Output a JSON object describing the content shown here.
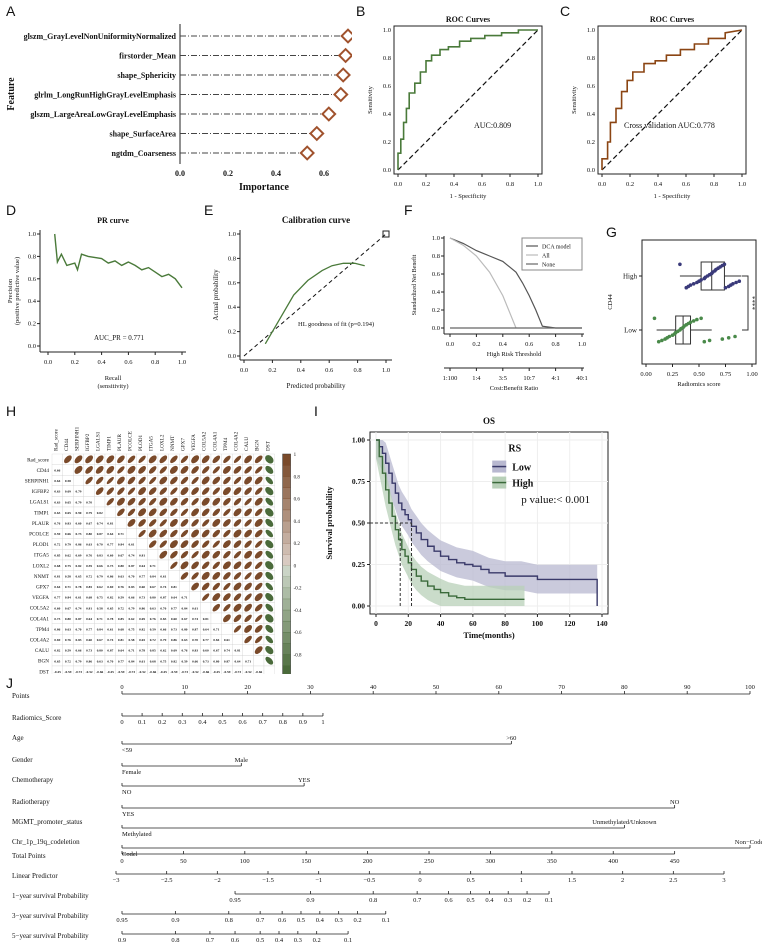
{
  "panel_labels": [
    "A",
    "B",
    "C",
    "D",
    "E",
    "F",
    "G",
    "H",
    "I",
    "J"
  ],
  "chart_data": [
    {
      "id": "A",
      "type": "scatter",
      "title": "",
      "xlabel": "Importance",
      "ylabel": "Feature",
      "xlim": [
        0,
        0.7
      ],
      "xticks": [
        "0.0",
        "0.2",
        "0.4",
        "0.6"
      ],
      "categories": [
        "glszm_GrayLevelNonUniformityNormalized",
        "firstorder_Mean",
        "shape_Sphericity",
        "glrlm_LongRunHighGrayLevelEmphasis",
        "glszm_LargeAreaLowGrayLevelEmphasis",
        "shape_SurfaceArea",
        "ngtdm_Coarseness"
      ],
      "values": [
        0.7,
        0.69,
        0.68,
        0.67,
        0.62,
        0.57,
        0.53
      ],
      "marker_color": "#a0522d"
    },
    {
      "id": "B",
      "type": "line",
      "title": "ROC Curves",
      "xlabel": "1 - Specificity",
      "ylabel": "Sensitivity",
      "xlim": [
        0,
        1
      ],
      "ylim": [
        0,
        1
      ],
      "ticks": [
        "0.0",
        "0.2",
        "0.4",
        "0.6",
        "0.8",
        "1.0"
      ],
      "annotation": "AUC:0.809",
      "color": "#4a7a3a",
      "x": [
        0,
        0,
        0.02,
        0.02,
        0.04,
        0.04,
        0.06,
        0.06,
        0.08,
        0.08,
        0.12,
        0.12,
        0.16,
        0.16,
        0.2,
        0.2,
        0.24,
        0.24,
        0.3,
        0.3,
        0.36,
        0.36,
        0.44,
        0.44,
        0.52,
        0.52,
        0.62,
        0.62,
        0.74,
        0.74,
        0.86,
        0.86,
        1
      ],
      "y": [
        0,
        0.12,
        0.12,
        0.22,
        0.22,
        0.34,
        0.34,
        0.44,
        0.44,
        0.55,
        0.55,
        0.62,
        0.62,
        0.7,
        0.7,
        0.78,
        0.78,
        0.82,
        0.82,
        0.86,
        0.86,
        0.88,
        0.88,
        0.92,
        0.92,
        0.94,
        0.94,
        0.96,
        0.96,
        0.98,
        0.98,
        1,
        1
      ]
    },
    {
      "id": "C",
      "type": "line",
      "title": "ROC Curves",
      "xlabel": "1 - Specificity",
      "ylabel": "Sensitivity",
      "xlim": [
        0,
        1
      ],
      "ylim": [
        0,
        1
      ],
      "ticks": [
        "0.0",
        "0.2",
        "0.4",
        "0.6",
        "0.8",
        "1.0"
      ],
      "annotation": "Cross validation AUC:0.778",
      "color": "#8b4513",
      "x": [
        0,
        0,
        0.04,
        0.04,
        0.06,
        0.06,
        0.1,
        0.1,
        0.14,
        0.14,
        0.18,
        0.18,
        0.22,
        0.22,
        0.3,
        0.3,
        0.38,
        0.38,
        0.46,
        0.46,
        0.56,
        0.56,
        0.66,
        0.66,
        0.76,
        0.76,
        0.88,
        0.88,
        1
      ],
      "y": [
        0,
        0.08,
        0.08,
        0.2,
        0.2,
        0.34,
        0.34,
        0.44,
        0.44,
        0.56,
        0.56,
        0.64,
        0.64,
        0.7,
        0.7,
        0.76,
        0.76,
        0.78,
        0.78,
        0.82,
        0.82,
        0.86,
        0.86,
        0.9,
        0.9,
        0.94,
        0.94,
        0.98,
        1
      ]
    },
    {
      "id": "D",
      "type": "line",
      "title": "PR curve",
      "xlabel": "Recall\n(sensitivity)",
      "ylabel": "Precision\n(positive predictive value)",
      "xlim": [
        0,
        1
      ],
      "ylim": [
        0,
        1
      ],
      "ticks": [
        "0.0",
        "0.2",
        "0.4",
        "0.6",
        "0.8",
        "1.0"
      ],
      "annotation": "AUC_PR = 0.771",
      "color": "#4a7a3a",
      "x": [
        0.05,
        0.07,
        0.1,
        0.14,
        0.2,
        0.22,
        0.25,
        0.3,
        0.4,
        0.45,
        0.5,
        0.55,
        0.6,
        0.65,
        0.7,
        0.75,
        0.8,
        0.85,
        0.9,
        0.95,
        1.0
      ],
      "y": [
        1.0,
        0.75,
        0.82,
        0.72,
        0.74,
        0.68,
        0.82,
        0.8,
        0.78,
        0.74,
        0.76,
        0.72,
        0.75,
        0.72,
        0.68,
        0.7,
        0.66,
        0.62,
        0.64,
        0.6,
        0.52
      ]
    },
    {
      "id": "E",
      "type": "line",
      "title": "Calibration curve",
      "xlabel": "Predicted probability",
      "ylabel": "Actual probability",
      "xlim": [
        0,
        1
      ],
      "ylim": [
        0,
        1
      ],
      "ticks": [
        "0.0",
        "0.2",
        "0.4",
        "0.6",
        "0.8",
        "1.0"
      ],
      "annotation": "HL goodness of fit (p=0.194)",
      "color": "#4a7a3a",
      "x": [
        0.15,
        0.25,
        0.35,
        0.45,
        0.55,
        0.62,
        0.7,
        0.78,
        0.85
      ],
      "y": [
        0.1,
        0.3,
        0.5,
        0.62,
        0.7,
        0.74,
        0.76,
        0.76,
        0.74
      ]
    },
    {
      "id": "F",
      "type": "line",
      "title": "",
      "xlabel": "High Risk Threshold",
      "xlabel2": "Cost:Benefit Ratio",
      "ylabel": "Standardized Net Benefit",
      "xlim": [
        0,
        1
      ],
      "ylim": [
        0,
        1
      ],
      "ticks": [
        "0.0",
        "0.2",
        "0.4",
        "0.6",
        "0.8",
        "1.0"
      ],
      "ticks2": [
        "1:100",
        "1:4",
        "3:5",
        "10:7",
        "4:1",
        "40:1"
      ],
      "series": [
        {
          "name": "DCA model",
          "color": "#555555",
          "x": [
            0,
            0.1,
            0.2,
            0.3,
            0.4,
            0.5,
            0.55,
            0.6,
            0.65,
            0.7,
            0.8,
            1.0
          ],
          "y": [
            1.0,
            0.94,
            0.86,
            0.8,
            0.74,
            0.62,
            0.5,
            0.36,
            0.2,
            0.02,
            0.0,
            0.0
          ]
        },
        {
          "name": "All",
          "color": "#bbbbbb",
          "x": [
            0,
            0.1,
            0.2,
            0.3,
            0.4,
            0.45,
            0.5
          ],
          "y": [
            1.0,
            0.92,
            0.8,
            0.62,
            0.36,
            0.18,
            0.0
          ]
        },
        {
          "name": "None",
          "color": "#666666",
          "x": [
            0,
            1
          ],
          "y": [
            0,
            0
          ]
        }
      ]
    },
    {
      "id": "G",
      "type": "scatter",
      "title": "",
      "xlabel": "Radiomics score",
      "ylabel": "CD44",
      "categories": [
        "High",
        "Low"
      ],
      "xlim": [
        0,
        1
      ],
      "xticks": [
        "0.00",
        "0.25",
        "0.50",
        "0.75",
        "1.00"
      ],
      "significance": "****",
      "series": [
        {
          "name": "High",
          "color": "#3a3a7a",
          "box": [
            0.32,
            0.52,
            0.62,
            0.74,
            0.9
          ],
          "values": [
            0.32,
            0.38,
            0.4,
            0.42,
            0.45,
            0.48,
            0.5,
            0.52,
            0.55,
            0.56,
            0.58,
            0.6,
            0.62,
            0.63,
            0.65,
            0.66,
            0.68,
            0.7,
            0.72,
            0.74,
            0.75,
            0.78,
            0.8,
            0.82,
            0.85,
            0.88
          ]
        },
        {
          "name": "Low",
          "color": "#4a8a4a",
          "box": [
            0.1,
            0.28,
            0.35,
            0.42,
            0.62
          ],
          "values": [
            0.08,
            0.12,
            0.15,
            0.18,
            0.2,
            0.22,
            0.25,
            0.27,
            0.28,
            0.3,
            0.32,
            0.33,
            0.35,
            0.36,
            0.38,
            0.4,
            0.42,
            0.45,
            0.48,
            0.52,
            0.55,
            0.6,
            0.72,
            0.78,
            0.84
          ]
        }
      ]
    },
    {
      "id": "H",
      "type": "heatmap",
      "title": "",
      "rows": [
        "Rad_score",
        "CD44",
        "SERPINH1",
        "IGFBP2",
        "LGALS1",
        "TIMP1",
        "PLAUR",
        "PCOLCE",
        "PLOD1",
        "ITGA5",
        "LOXL2",
        "NNMT",
        "GPX7",
        "VEGFA",
        "COL5A2",
        "COL4A1",
        "TPM4",
        "COL4A2",
        "CALU",
        "BGN",
        "DST"
      ],
      "color_scale": [
        "1",
        "0.8",
        "0.6",
        "0.4",
        "0.2",
        "0",
        "-0.2",
        "-0.4",
        "-0.6",
        "-0.8",
        "-1"
      ],
      "pos_color": "#7a4a2a",
      "neg_color": "#4a6a3a",
      "values": [
        [
          0.66,
          0.64,
          0.63,
          0.63,
          0.63,
          0.62,
          0.62,
          0.61,
          0.61,
          0.61,
          0.61,
          0.61,
          0.6,
          0.6,
          0.6,
          0.6,
          0.59,
          0.59,
          0.59,
          0.59
        ],
        [
          0.58,
          0.58,
          0.69,
          0.65,
          0.65,
          0.61,
          0.68,
          0.62,
          0.7,
          0.61,
          0.64,
          0.64,
          0.67,
          0.64,
          0.65,
          0.62,
          0.55,
          0.61,
          0.59,
          0.58
        ],
        [
          0.55,
          0.6,
          0.79,
          0.79,
          0.9,
          0.78,
          0.84,
          0.81,
          0.77,
          0.74,
          0.73,
          0.73,
          0.72,
          0.7,
          0.72,
          0.69,
          0.7,
          0.72,
          0.69,
          -0.45
        ],
        [
          0.64,
          0.64,
          0.68,
          0.7,
          0.79,
          0.78,
          0.82,
          0.82,
          0.75,
          0.77,
          0.74,
          0.75,
          0.77,
          0.72,
          0.75,
          0.76,
          0.73,
          0.7,
          0.72,
          -0.67
        ],
        [
          0.62,
          0.69,
          0.7,
          0.68,
          0.82,
          0.84,
          0.74,
          0.8,
          0.82,
          0.7,
          0.71,
          0.72,
          0.73,
          0.74,
          0.74,
          0.76,
          0.71,
          0.76,
          0.74,
          -0.68
        ]
      ]
    },
    {
      "id": "I",
      "type": "line",
      "title": "OS",
      "xlabel": "Time(months)",
      "ylabel": "Survival probability",
      "xlim": [
        0,
        140
      ],
      "ylim": [
        0,
        1
      ],
      "xticks": [
        "0",
        "20",
        "40",
        "60",
        "80",
        "100",
        "120",
        "140"
      ],
      "yticks": [
        "0.00",
        "0.25",
        "0.50",
        "0.75",
        "1.00"
      ],
      "legend_title": "RS",
      "annotation": "p value:< 0.001",
      "series": [
        {
          "name": "Low",
          "color": "#3a3a6a",
          "band": "#b8b8d0",
          "x": [
            0,
            2,
            4,
            6,
            8,
            10,
            12,
            14,
            16,
            18,
            20,
            22,
            25,
            28,
            32,
            36,
            40,
            45,
            50,
            55,
            60,
            65,
            70,
            80,
            90,
            100,
            110,
            120,
            130,
            137,
            137
          ],
          "y": [
            1.0,
            0.96,
            0.92,
            0.86,
            0.8,
            0.74,
            0.68,
            0.62,
            0.58,
            0.55,
            0.52,
            0.48,
            0.44,
            0.4,
            0.36,
            0.33,
            0.3,
            0.28,
            0.26,
            0.25,
            0.24,
            0.22,
            0.2,
            0.18,
            0.18,
            0.16,
            0.16,
            0.16,
            0.16,
            0.16,
            0.0
          ]
        },
        {
          "name": "High",
          "color": "#3a6a3a",
          "band": "#b8d0b8",
          "x": [
            0,
            2,
            4,
            6,
            8,
            10,
            12,
            14,
            16,
            18,
            20,
            22,
            25,
            28,
            32,
            36,
            40,
            45,
            50,
            55,
            60,
            70,
            80,
            92
          ],
          "y": [
            1.0,
            0.9,
            0.8,
            0.7,
            0.62,
            0.54,
            0.46,
            0.4,
            0.34,
            0.3,
            0.26,
            0.22,
            0.18,
            0.15,
            0.12,
            0.1,
            0.08,
            0.06,
            0.05,
            0.04,
            0.04,
            0.04,
            0.04,
            0.04
          ]
        }
      ]
    },
    {
      "id": "J",
      "type": "table",
      "title": "",
      "rows": [
        {
          "label": "Points",
          "ticks": [
            "0",
            "10",
            "20",
            "30",
            "40",
            "50",
            "60",
            "70",
            "80",
            "90",
            "100"
          ]
        },
        {
          "label": "Radiomics_Score",
          "ticks": [
            "0",
            "0.1",
            "0.2",
            "0.3",
            "0.4",
            "0.5",
            "0.6",
            "0.7",
            "0.8",
            "0.9",
            "1"
          ]
        },
        {
          "label": "Age",
          "ticks": [
            "<59",
            ">60"
          ]
        },
        {
          "label": "Gender",
          "ticks": [
            "Female",
            "Male"
          ]
        },
        {
          "label": "Chemotherapy",
          "ticks": [
            "NO",
            "YES"
          ]
        },
        {
          "label": "Radiotherapy",
          "ticks": [
            "YES",
            "NO"
          ]
        },
        {
          "label": "MGMT_promoter_status",
          "ticks": [
            "Methylated",
            "Unmethylated/Unknown"
          ]
        },
        {
          "label": "Chr_1p_19q_codeletion",
          "ticks": [
            "Codel",
            "Non−Codel"
          ]
        },
        {
          "label": "Total Points",
          "ticks": [
            "0",
            "50",
            "100",
            "150",
            "200",
            "250",
            "300",
            "350",
            "400",
            "450"
          ]
        },
        {
          "label": "Linear Predictor",
          "ticks": [
            "−3",
            "−2.5",
            "−2",
            "−1.5",
            "−1",
            "−0.5",
            "0",
            "0.5",
            "1",
            "1.5",
            "2",
            "2.5",
            "3"
          ]
        },
        {
          "label": "1−year survival Probability",
          "ticks": [
            "0.95",
            "0.9",
            "0.8",
            "0.7",
            "0.6",
            "0.5",
            "0.4",
            "0.3",
            "0.2",
            "0.1"
          ]
        },
        {
          "label": "3−year survival Probability",
          "ticks": [
            "0.95",
            "0.9",
            "0.8",
            "0.7",
            "0.6",
            "0.5",
            "0.4",
            "0.3",
            "0.2",
            "0.1"
          ]
        },
        {
          "label": "5−year survival Probability",
          "ticks": [
            "0.9",
            "0.8",
            "0.7",
            "0.6",
            "0.5",
            "0.4",
            "0.3",
            "0.2",
            "0.1"
          ]
        }
      ]
    }
  ]
}
